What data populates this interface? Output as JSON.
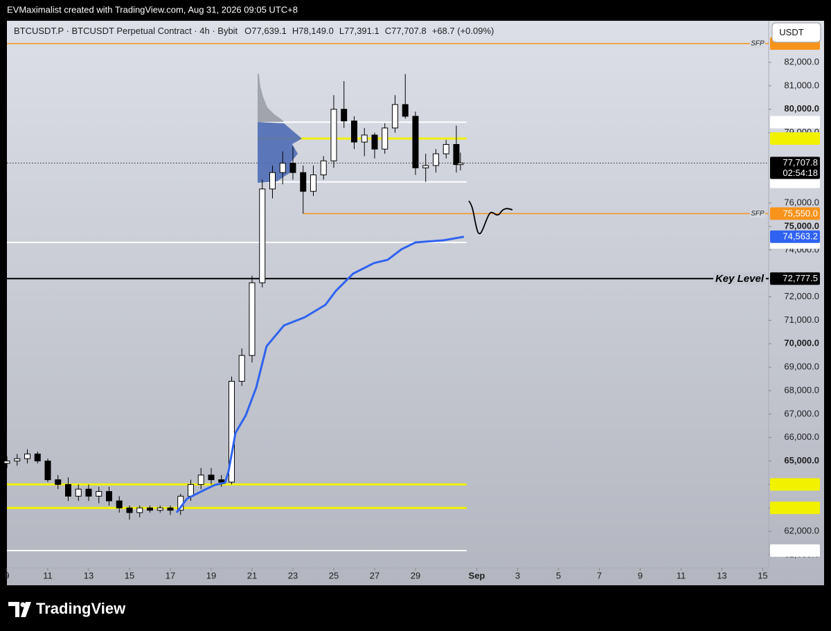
{
  "header": {
    "attribution": "EVMaximalist created with TradingView.com, Aug 31, 2026 09:05 UTC+8"
  },
  "footer": {
    "logo": "TradingView"
  },
  "chart_data": {
    "type": "candlestick",
    "title": "BTCUSDT.P · BTCUSDT Perpetual Contract · 4h · Bybit",
    "ohlc_legend": [
      "O77,639.1",
      "H78,149.0",
      "L77,391.1",
      "C77,707.8",
      "+68.7 (+0.09%)"
    ],
    "currency": "USDT",
    "up_color": "#ffffff",
    "down_color": "#000000",
    "x": [
      0,
      0.5,
      1,
      1.5,
      2,
      2.5,
      3,
      3.5,
      4,
      4.5,
      5,
      5.5,
      6,
      6.5,
      7,
      7.5,
      8,
      8.5,
      9,
      9.5,
      10,
      10.5,
      11,
      11.5,
      12,
      12.5,
      13,
      13.5,
      14,
      14.5,
      15,
      15.5,
      16,
      16.5,
      17,
      17.5,
      18,
      18.5,
      19,
      19.5,
      20,
      20.5,
      21,
      21.5,
      22,
      22.2
    ],
    "open": [
      64900,
      65000,
      65100,
      65300,
      65000,
      64200,
      64000,
      63500,
      63800,
      63500,
      63700,
      63300,
      63000,
      62800,
      63000,
      62900,
      63000,
      62900,
      63500,
      64000,
      64400,
      64200,
      64100,
      68400,
      69500,
      72600,
      76600,
      77300,
      77700,
      77300,
      76500,
      77200,
      77800,
      80000,
      79500,
      78600,
      78900,
      78300,
      79200,
      80200,
      79700,
      77500,
      77600,
      78100,
      78500,
      77639.1
    ],
    "high": [
      65200,
      65300,
      65500,
      65400,
      65100,
      64400,
      64300,
      64000,
      64000,
      63900,
      63900,
      63500,
      63100,
      63100,
      63100,
      63100,
      63100,
      63600,
      64200,
      64700,
      64700,
      64400,
      68600,
      69800,
      72900,
      77000,
      77600,
      78200,
      78400,
      77600,
      77600,
      78000,
      80600,
      81200,
      79700,
      79200,
      79000,
      79400,
      80600,
      81500,
      79900,
      78100,
      78300,
      78700,
      79300,
      78149
    ],
    "low": [
      64700,
      64800,
      64900,
      64900,
      64100,
      63800,
      63300,
      63300,
      63300,
      63200,
      63100,
      62800,
      62500,
      62600,
      62800,
      62800,
      62700,
      62700,
      63300,
      63800,
      64000,
      63900,
      64000,
      68200,
      69200,
      72400,
      76200,
      76800,
      77000,
      75550,
      76300,
      77000,
      77500,
      79200,
      78300,
      78000,
      77900,
      78100,
      79000,
      79600,
      77200,
      76900,
      77300,
      77900,
      77300,
      77391.1
    ],
    "close": [
      65000,
      65100,
      65300,
      65000,
      64200,
      64000,
      63500,
      63800,
      63500,
      63700,
      63300,
      63000,
      62800,
      63000,
      62900,
      63000,
      62900,
      63500,
      64000,
      64400,
      64200,
      64100,
      68400,
      69500,
      72600,
      76600,
      77300,
      77700,
      77300,
      76500,
      77200,
      77800,
      80000,
      79500,
      78600,
      78900,
      78300,
      79200,
      80200,
      79700,
      77500,
      77600,
      78100,
      78500,
      77639.1,
      77707.8
    ],
    "xlim": [
      0,
      37.29
    ],
    "xticks": [
      {
        "value": 0,
        "label": "9"
      },
      {
        "value": 2,
        "label": "11"
      },
      {
        "value": 4,
        "label": "13"
      },
      {
        "value": 6,
        "label": "15"
      },
      {
        "value": 8,
        "label": "17"
      },
      {
        "value": 10,
        "label": "19"
      },
      {
        "value": 12,
        "label": "21"
      },
      {
        "value": 14,
        "label": "23"
      },
      {
        "value": 16,
        "label": "25"
      },
      {
        "value": 18,
        "label": "27"
      },
      {
        "value": 20,
        "label": "29"
      },
      {
        "value": 23,
        "label": "Sep"
      },
      {
        "value": 25,
        "label": "3"
      },
      {
        "value": 27,
        "label": "5"
      },
      {
        "value": 29,
        "label": "7"
      },
      {
        "value": 31,
        "label": "9"
      },
      {
        "value": 33,
        "label": "11"
      },
      {
        "value": 35,
        "label": "13"
      },
      {
        "value": 37,
        "label": "15"
      }
    ],
    "ylim": [
      59700,
      83772
    ],
    "yticks": [
      {
        "value": 61000,
        "label": "61,000.0"
      },
      {
        "value": 62000,
        "label": "62,000.0"
      },
      {
        "value": 63000,
        "label": "63,000.0"
      },
      {
        "value": 64000,
        "label": "64,000.0"
      },
      {
        "value": 65000,
        "label": "65,000.0"
      },
      {
        "value": 66000,
        "label": "66,000.0"
      },
      {
        "value": 67000,
        "label": "67,000.0"
      },
      {
        "value": 68000,
        "label": "68,000.0"
      },
      {
        "value": 69000,
        "label": "69,000.0"
      },
      {
        "value": 70000,
        "label": "70,000.0"
      },
      {
        "value": 71000,
        "label": "71,000.0"
      },
      {
        "value": 72000,
        "label": "72,000.0"
      },
      {
        "value": 74000,
        "label": "74,000.0"
      },
      {
        "value": 75000,
        "label": "75,000.0"
      },
      {
        "value": 76000,
        "label": "76,000.0"
      },
      {
        "value": 79000,
        "label": "79,000.0"
      },
      {
        "value": 80000,
        "label": "80,000.0"
      },
      {
        "value": 81000,
        "label": "81,000.0"
      },
      {
        "value": 82000,
        "label": "82,000.0"
      }
    ],
    "levels": [
      {
        "value": 64000,
        "from": 0,
        "to": 22.5,
        "color": "#f2f200",
        "width": 3
      },
      {
        "value": 63000,
        "from": 0,
        "to": 22.5,
        "color": "#f2f200",
        "width": 3
      },
      {
        "value": 78750,
        "from": 12.27,
        "to": 22.5,
        "color": "#f2f200",
        "width": 3
      },
      {
        "value": 79450,
        "from": 12.27,
        "to": 22.5,
        "color": "#ffffff",
        "width": 2
      },
      {
        "value": 76900,
        "from": 12.27,
        "to": 22.5,
        "color": "#ffffff",
        "width": 2
      },
      {
        "value": 74320,
        "from": 0,
        "to": 22.5,
        "color": "#ffffff",
        "width": 2
      },
      {
        "value": 61180,
        "from": 0,
        "to": 22.5,
        "color": "#ffffff",
        "width": 2
      },
      {
        "value": 82800,
        "color": "#f7931a",
        "width": 1.5,
        "text": "SFP"
      },
      {
        "value": 75550,
        "from": 14.5,
        "color": "#f7931a",
        "width": 1.5,
        "text": "SFP",
        "price_label": "75,550.0"
      },
      {
        "value": 72777.5,
        "color": "#000000",
        "width": 2,
        "label": "Key Level",
        "price_label": "72,777.5"
      }
    ],
    "vwap": {
      "color": "#2f62f0",
      "price_label": "74,563.2",
      "x": [
        8.31,
        8.81,
        9.49,
        10.17,
        10.68,
        10.85,
        11.19,
        11.69,
        12.2,
        12.71,
        13.56,
        14.58,
        15.59,
        16.1,
        16.95,
        17.97,
        18.64,
        19.32,
        20.0,
        21.36,
        22.37
      ],
      "values": [
        62800,
        63390,
        63690,
        63980,
        64070,
        64570,
        66200,
        66940,
        68120,
        69890,
        70780,
        71130,
        71660,
        72250,
        72990,
        73440,
        73580,
        74030,
        74320,
        74410,
        74563.2
      ]
    },
    "last_price": {
      "value": 77707.8,
      "price_label": "77,707.8",
      "countdown": "02:54:18"
    }
  }
}
